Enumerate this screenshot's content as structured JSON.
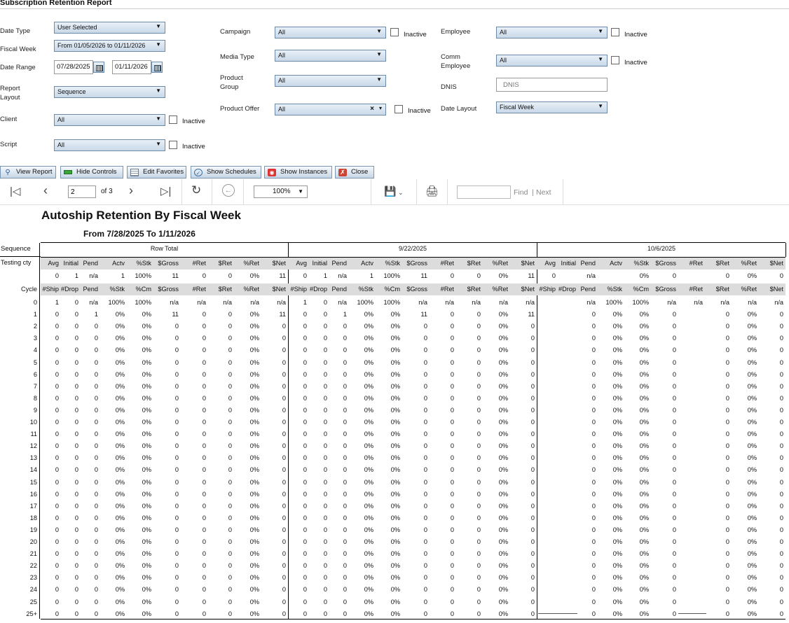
{
  "app_title": "Subscription Retention Report",
  "params": {
    "date_type": {
      "label": "Date Type",
      "value": "User Selected"
    },
    "fiscal_week": {
      "label": "Fiscal Week",
      "value": "From 01/05/2026 to 01/11/2026"
    },
    "date_range": {
      "label": "Date Range",
      "from": "07/28/2025",
      "to": "01/11/2026"
    },
    "report_layout": {
      "label_1": "Report",
      "label_2": "Layout",
      "value": "Sequence"
    },
    "client": {
      "label": "Client",
      "value": "All"
    },
    "script": {
      "label": "Script",
      "value": "All"
    },
    "campaign": {
      "label": "Campaign",
      "value": "All"
    },
    "media_type": {
      "label": "Media Type",
      "value": "All"
    },
    "product_group": {
      "label_1": "Product",
      "label_2": "Group",
      "value": "All"
    },
    "product_offer": {
      "label": "Product Offer",
      "value": "All"
    },
    "employee": {
      "label": "Employee",
      "value": "All"
    },
    "comm_employee": {
      "label_1": "Comm",
      "label_2": "Employee",
      "value": "All"
    },
    "dnis": {
      "label": "DNIS",
      "placeholder": "DNIS"
    },
    "date_layout": {
      "label": "Date Layout",
      "value": "Fiscal Week"
    },
    "inactive_label": "Inactive"
  },
  "buttons": {
    "view_report": "View Report",
    "hide_controls": "Hide Controls",
    "edit_favorites": "Edit Favorites",
    "show_schedules": "Show Schedules",
    "show_instances": "Show Instances",
    "close": "Close"
  },
  "toolbar": {
    "page": "2",
    "of_pages": "of 3",
    "zoom": "100%",
    "find": "Find",
    "next": "Next",
    "separator": "|"
  },
  "report": {
    "title": "Autoship Retention By Fiscal Week",
    "subtitle": "From 7/28/2025 To 1/11/2026",
    "sequence_label": "Sequence",
    "testing_label": "Testing cty",
    "cycle_label": "Cycle",
    "groups": [
      "Row Total",
      "9/22/2025",
      "10/6/2025"
    ],
    "summary_headers": [
      "Avg",
      "Initial",
      "Pend",
      "Actv",
      "%Stk",
      "$Gross",
      "#Ret",
      "$Ret",
      "%Ret",
      "$Net"
    ],
    "cycle_headers": [
      "#Ship",
      "#Drop",
      "Pend",
      "%Stk",
      "%Cm",
      "$Gross",
      "#Ret",
      "$Ret",
      "%Ret",
      "$Net"
    ],
    "summary_rows": [
      [
        "0",
        "1",
        "n/a",
        "1",
        "100%",
        "11",
        "0",
        "0",
        "0%",
        "11"
      ],
      [
        "0",
        "1",
        "n/a",
        "1",
        "100%",
        "11",
        "0",
        "0",
        "0%",
        "11"
      ],
      [
        "0",
        "",
        "n/a",
        "",
        "0%",
        "0",
        "",
        "0",
        "0%",
        "0"
      ]
    ],
    "cycles": [
      "0",
      "1",
      "2",
      "3",
      "4",
      "5",
      "6",
      "7",
      "8",
      "9",
      "10",
      "11",
      "12",
      "13",
      "14",
      "15",
      "16",
      "17",
      "18",
      "19",
      "20",
      "21",
      "22",
      "23",
      "24",
      "25",
      "25+"
    ],
    "row0": [
      [
        "1",
        "0",
        "n/a",
        "100%",
        "100%",
        "n/a",
        "n/a",
        "n/a",
        "n/a",
        "n/a"
      ],
      [
        "1",
        "0",
        "n/a",
        "100%",
        "100%",
        "n/a",
        "n/a",
        "n/a",
        "n/a",
        "n/a"
      ],
      [
        "",
        "",
        "n/a",
        "100%",
        "100%",
        "n/a",
        "n/a",
        "n/a",
        "n/a",
        "n/a"
      ]
    ],
    "row1": [
      [
        "0",
        "0",
        "1",
        "0%",
        "0%",
        "11",
        "0",
        "0",
        "0%",
        "11"
      ],
      [
        "0",
        "0",
        "1",
        "0%",
        "0%",
        "11",
        "0",
        "0",
        "0%",
        "11"
      ],
      [
        "",
        "",
        "0",
        "0%",
        "0%",
        "0",
        "",
        "0",
        "0%",
        "0"
      ]
    ],
    "row_rest": [
      [
        "0",
        "0",
        "0",
        "0%",
        "0%",
        "0",
        "0",
        "0",
        "0%",
        "0"
      ],
      [
        "0",
        "0",
        "0",
        "0%",
        "0%",
        "0",
        "0",
        "0",
        "0%",
        "0"
      ],
      [
        "",
        "",
        "0",
        "0%",
        "0%",
        "0",
        "",
        "0",
        "0%",
        "0"
      ]
    ]
  }
}
